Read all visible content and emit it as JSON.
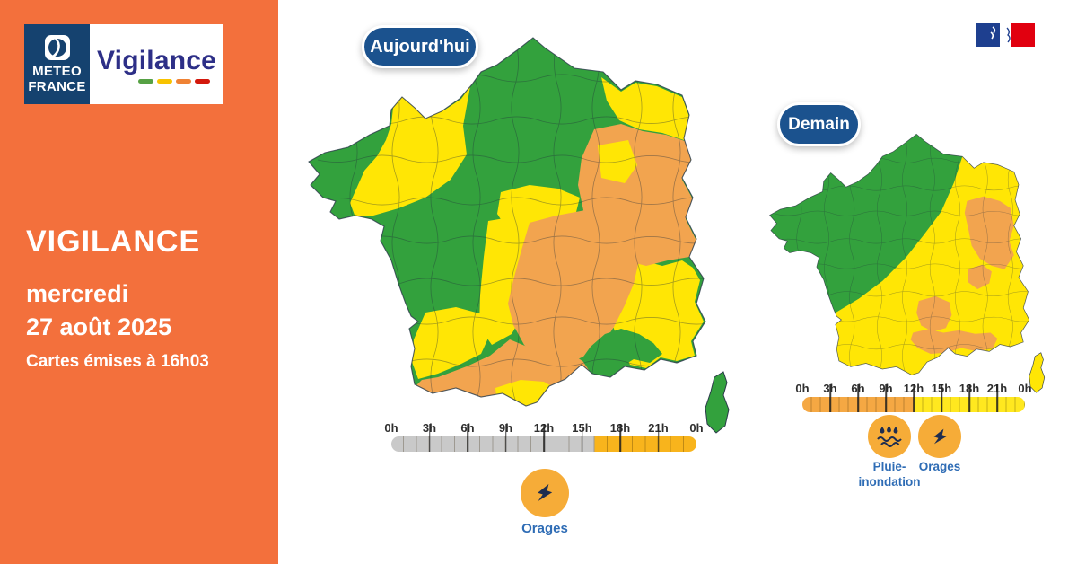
{
  "brand": {
    "org_line1": "METEO",
    "org_line2": "FRANCE",
    "product": "Vigilance"
  },
  "sidebar": {
    "title": "VIGILANCE",
    "weekday": "mercredi",
    "date": "27 août 2025",
    "issued": "Cartes émises à 16h03"
  },
  "maps": [
    {
      "label": "Aujourd'hui",
      "legend_hours": [
        "0h",
        "3h",
        "6h",
        "9h",
        "12h",
        "15h",
        "18h",
        "21h",
        "0h"
      ],
      "timeline_segments": [
        {
          "color": "#c9c9c9",
          "from": 0,
          "to": 16
        },
        {
          "color": "#f8b41c",
          "from": 16,
          "to": 24
        }
      ],
      "phenomena": [
        {
          "name": "Orages",
          "icon": "lightning-icon",
          "lines": [
            "Orages"
          ]
        }
      ]
    },
    {
      "label": "Demain",
      "legend_hours": [
        "0h",
        "3h",
        "6h",
        "9h",
        "12h",
        "15h",
        "18h",
        "21h",
        "0h"
      ],
      "timeline_segments": [
        {
          "color": "#f5a843",
          "from": 0,
          "to": 12
        },
        {
          "color": "#ffe81f",
          "from": 12,
          "to": 24
        }
      ],
      "phenomena": [
        {
          "name": "Pluie-inondation",
          "icon": "rain-flood-icon",
          "lines": [
            "Pluie-",
            "inondation"
          ]
        },
        {
          "name": "Orages",
          "icon": "lightning-icon",
          "lines": [
            "Orages"
          ]
        }
      ]
    }
  ],
  "colors": {
    "sidebar_orange": "#f3703c",
    "navy": "#1b528e",
    "navy_dark": "#1e2d4f",
    "logo_navy": "#15426f",
    "wordmark_indigo": "#2d2f87",
    "map_green": "#33a13d",
    "map_yellow": "#ffe605",
    "map_orange": "#f2a44f",
    "icon_orange": "#f6ac38",
    "label_blue": "#2e6cb5",
    "scale_green": "#56a144",
    "scale_yellow": "#f8c300",
    "scale_orange": "#ef8234",
    "scale_red": "#d3180c"
  }
}
